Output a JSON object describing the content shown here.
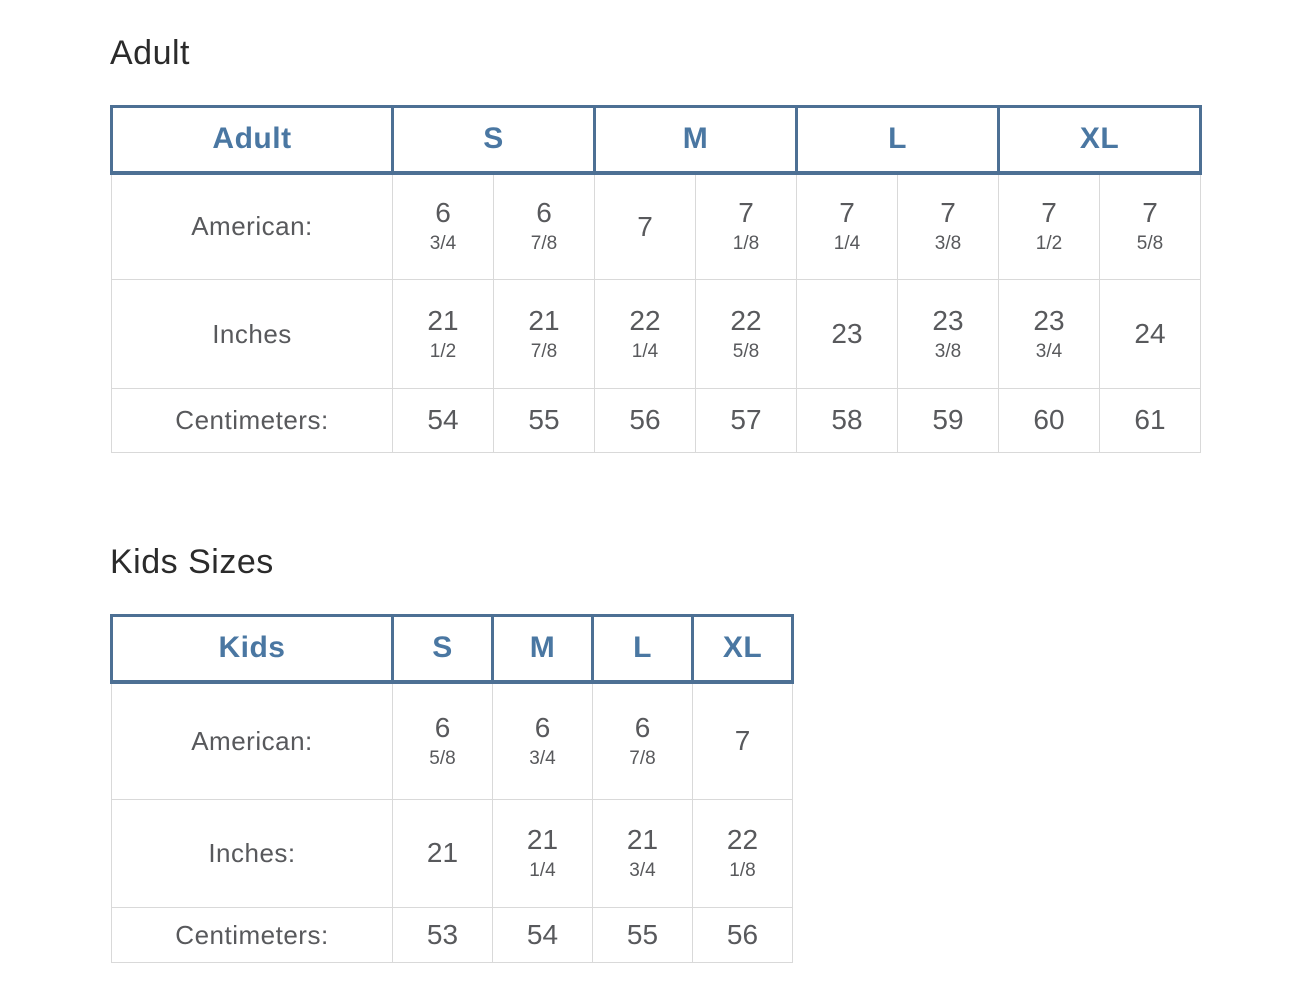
{
  "colors": {
    "header_border": "#4d7094",
    "header_text": "#4a77a2",
    "body_text": "#58595c",
    "title_text": "#2b2b2b",
    "grid_line": "#d9d9d9",
    "page_bg": "#ffffff"
  },
  "sections": [
    {
      "title": "Adult",
      "table": {
        "corner_label": "Adult",
        "size_headers": [
          "S",
          "M",
          "L",
          "XL"
        ],
        "size_colspan": 2,
        "rows": [
          {
            "label": "American:",
            "cells": [
              [
                "6",
                "3/4"
              ],
              [
                "6",
                "7/8"
              ],
              [
                "7"
              ],
              [
                "7",
                "1/8"
              ],
              [
                "7",
                "1/4"
              ],
              [
                "7",
                "3/8"
              ],
              [
                "7",
                "1/2"
              ],
              [
                "7",
                "5/8"
              ]
            ]
          },
          {
            "label": "Inches",
            "cells": [
              [
                "21",
                "1/2"
              ],
              [
                "21",
                "7/8"
              ],
              [
                "22",
                "1/4"
              ],
              [
                "22",
                "5/8"
              ],
              [
                "23"
              ],
              [
                "23",
                "3/8"
              ],
              [
                "23",
                "3/4"
              ],
              [
                "24"
              ]
            ]
          },
          {
            "label": "Centimeters:",
            "cells": [
              [
                "54"
              ],
              [
                "55"
              ],
              [
                "56"
              ],
              [
                "57"
              ],
              [
                "58"
              ],
              [
                "59"
              ],
              [
                "60"
              ],
              [
                "61"
              ]
            ]
          }
        ]
      }
    },
    {
      "title": "Kids Sizes",
      "table": {
        "corner_label": "Kids",
        "size_headers": [
          "S",
          "M",
          "L",
          "XL"
        ],
        "size_colspan": 1,
        "rows": [
          {
            "label": "American:",
            "cells": [
              [
                "6",
                "5/8"
              ],
              [
                "6",
                "3/4"
              ],
              [
                "6",
                "7/8"
              ],
              [
                "7"
              ]
            ]
          },
          {
            "label": "Inches:",
            "cells": [
              [
                "21"
              ],
              [
                "21",
                "1/4"
              ],
              [
                "21",
                "3/4"
              ],
              [
                "22",
                "1/8"
              ]
            ]
          },
          {
            "label": "Centimeters:",
            "cells": [
              [
                "53"
              ],
              [
                "54"
              ],
              [
                "55"
              ],
              [
                "56"
              ]
            ]
          }
        ]
      }
    }
  ]
}
